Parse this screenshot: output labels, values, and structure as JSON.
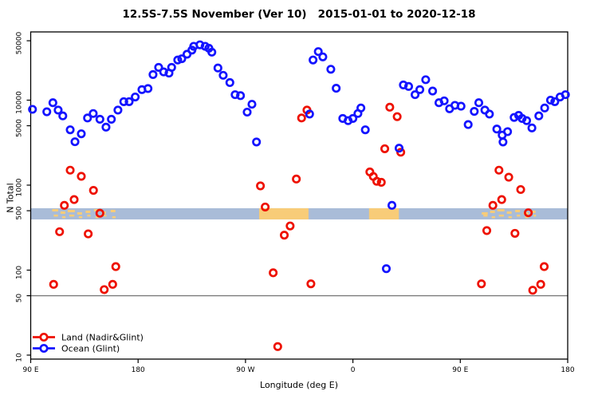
{
  "chart_data": {
    "type": "scatter",
    "title": "12.5S-7.5S November (Ver 10)   2015-01-01 to 2020-12-18",
    "xlabel": "Longitude (deg E)",
    "ylabel": "N Total",
    "x_axis": {
      "range_deg_east": [
        90,
        540
      ],
      "ticks": [
        {
          "deg": 90,
          "label": "90 E"
        },
        {
          "deg": 180,
          "label": "180"
        },
        {
          "deg": 270,
          "label": "90 W"
        },
        {
          "deg": 360,
          "label": "0"
        },
        {
          "deg": 450,
          "label": "90 E"
        },
        {
          "deg": 540,
          "label": "180"
        }
      ]
    },
    "y_axis": {
      "scale": "log10",
      "range": [
        9.5,
        60000
      ],
      "ticks": [
        {
          "value": 50000,
          "label": "50000"
        },
        {
          "value": 10000,
          "label": "10000"
        },
        {
          "value": 5000,
          "label": "5000"
        },
        {
          "value": 1000,
          "label": "1000"
        },
        {
          "value": 500,
          "label": "500"
        },
        {
          "value": 100,
          "label": "100"
        },
        {
          "value": 50,
          "label": "50"
        },
        {
          "value": 10,
          "label": "10"
        }
      ]
    },
    "reference_line": {
      "value": 50,
      "color": "#7a7a7a"
    },
    "map_strip": {
      "n_range": [
        395,
        535
      ],
      "ocean_color": "#a9bcd8",
      "land_color": "#f8cc78",
      "solid_land_lon": [
        [
          281.4,
          322.8
        ],
        [
          373.5,
          398.5
        ]
      ],
      "speckle_land_lon": [
        [
          108,
          113
        ],
        [
          115,
          119
        ],
        [
          121,
          127
        ],
        [
          129,
          133
        ],
        [
          136,
          140
        ],
        [
          143,
          147
        ],
        [
          150,
          153
        ],
        [
          157,
          161
        ],
        [
          468,
          473
        ],
        [
          475,
          479
        ],
        [
          481,
          487
        ],
        [
          489,
          493
        ],
        [
          496,
          500
        ],
        [
          503,
          507
        ],
        [
          510,
          513
        ]
      ]
    },
    "legend": {
      "position": "bottom-left",
      "items": [
        {
          "label": "Land (Nadir&Glint)",
          "color": "#ee1100"
        },
        {
          "label": "Ocean (Glint)",
          "color": "#1414ff"
        }
      ]
    },
    "series": [
      {
        "name": "Land (Nadir&Glint)",
        "color": "#ee1100",
        "points": [
          [
            109.2,
            68
          ],
          [
            114.2,
            283
          ],
          [
            118.2,
            578
          ],
          [
            123.1,
            1500
          ],
          [
            126.4,
            676
          ],
          [
            132.4,
            1270
          ],
          [
            138.2,
            267
          ],
          [
            142.6,
            868
          ],
          [
            148,
            467
          ],
          [
            151.6,
            59
          ],
          [
            158.7,
            68
          ],
          [
            161.3,
            110
          ],
          [
            282.5,
            980
          ],
          [
            286.5,
            553
          ],
          [
            293.2,
            93
          ],
          [
            297,
            12.6
          ],
          [
            302.5,
            258
          ],
          [
            307.4,
            331
          ],
          [
            312.6,
            1180
          ],
          [
            317,
            6170
          ],
          [
            321.5,
            7640
          ],
          [
            324.8,
            69
          ],
          [
            374.2,
            1430
          ],
          [
            377.1,
            1265
          ],
          [
            380,
            1110
          ],
          [
            383.8,
            1080
          ],
          [
            386.7,
            2680
          ],
          [
            390.9,
            8260
          ],
          [
            397.1,
            6400
          ],
          [
            400.1,
            2440
          ],
          [
            467.7,
            69
          ],
          [
            472.2,
            292
          ],
          [
            477.3,
            578
          ],
          [
            482.4,
            1500
          ],
          [
            484.7,
            676
          ],
          [
            490.6,
            1240
          ],
          [
            495.8,
            271
          ],
          [
            500.6,
            888
          ],
          [
            507,
            473
          ],
          [
            510.7,
            58
          ],
          [
            517.4,
            68
          ],
          [
            520.3,
            110
          ]
        ]
      },
      {
        "name": "Ocean (Glint)",
        "color": "#1414ff",
        "points": [
          [
            91.5,
            7800
          ],
          [
            103.5,
            7300
          ],
          [
            108.6,
            9330
          ],
          [
            113,
            7640
          ],
          [
            116.9,
            6530
          ],
          [
            123.1,
            4480
          ],
          [
            127.1,
            3240
          ],
          [
            132.4,
            4020
          ],
          [
            137.6,
            6170
          ],
          [
            142.4,
            6960
          ],
          [
            148,
            5960
          ],
          [
            153.1,
            4810
          ],
          [
            157.6,
            5960
          ],
          [
            163.1,
            7640
          ],
          [
            168,
            9600
          ],
          [
            172.5,
            9600
          ],
          [
            177.6,
            10900
          ],
          [
            183.2,
            13300
          ],
          [
            188.3,
            13700
          ],
          [
            192.5,
            20000
          ],
          [
            197.2,
            24300
          ],
          [
            201.4,
            21500
          ],
          [
            205.9,
            20800
          ],
          [
            208.1,
            24300
          ],
          [
            213.2,
            29700
          ],
          [
            216.6,
            30700
          ],
          [
            221,
            34700
          ],
          [
            225.1,
            38800
          ],
          [
            226.6,
            43000
          ],
          [
            231.8,
            44800
          ],
          [
            236.2,
            43000
          ],
          [
            239.3,
            40800
          ],
          [
            241.8,
            36700
          ],
          [
            246.9,
            23900
          ],
          [
            251.3,
            19600
          ],
          [
            256.9,
            16100
          ],
          [
            261.3,
            11600
          ],
          [
            265.8,
            11300
          ],
          [
            271.4,
            7230
          ],
          [
            275.4,
            8950
          ],
          [
            279.2,
            3220
          ],
          [
            323.7,
            6860
          ],
          [
            326.6,
            29700
          ],
          [
            331,
            37300
          ],
          [
            334.8,
            32300
          ],
          [
            341.5,
            23100
          ],
          [
            346,
            13800
          ],
          [
            351.5,
            6090
          ],
          [
            356,
            5740
          ],
          [
            360,
            6090
          ],
          [
            364.2,
            6960
          ],
          [
            366.7,
            8090
          ],
          [
            370.4,
            4480
          ],
          [
            388,
            104
          ],
          [
            392.7,
            578
          ],
          [
            398.7,
            2720
          ],
          [
            402.3,
            15100
          ],
          [
            406.7,
            14500
          ],
          [
            412.1,
            11600
          ],
          [
            416.1,
            13300
          ],
          [
            421,
            17400
          ],
          [
            426.8,
            12800
          ],
          [
            432.1,
            9330
          ],
          [
            436.5,
            9810
          ],
          [
            441,
            7920
          ],
          [
            445.5,
            8690
          ],
          [
            450.6,
            8490
          ],
          [
            456.6,
            5160
          ],
          [
            461.7,
            7380
          ],
          [
            465.5,
            9330
          ],
          [
            470.6,
            7640
          ],
          [
            474.4,
            6860
          ],
          [
            480.6,
            4570
          ],
          [
            485.1,
            3880
          ],
          [
            485.8,
            3220
          ],
          [
            489.6,
            4260
          ],
          [
            495.1,
            6260
          ],
          [
            498.9,
            6620
          ],
          [
            501.8,
            6090
          ],
          [
            505.6,
            5740
          ],
          [
            510,
            4710
          ],
          [
            515.8,
            6530
          ],
          [
            520.7,
            8090
          ],
          [
            525.6,
            10000
          ],
          [
            529.2,
            9600
          ],
          [
            533.6,
            10900
          ],
          [
            538.1,
            11600
          ]
        ]
      }
    ]
  }
}
